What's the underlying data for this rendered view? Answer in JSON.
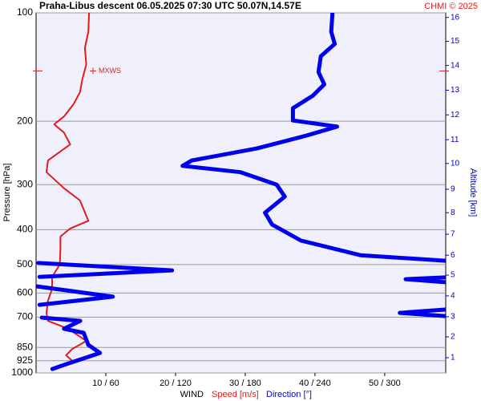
{
  "chart_data": {
    "type": "profile",
    "title": "Praha-Libus   descent   06.05.2025 07:30 UTC   50.07N,14.57E",
    "credit": "CHMI © 2025",
    "ylabel": "Pressure [hPa]",
    "y2label": "Altitude [km]",
    "xlabel": "WIND",
    "log_y": true,
    "ylim": [
      1000,
      100
    ],
    "yticks": [
      100,
      200,
      300,
      400,
      500,
      600,
      700,
      850,
      925,
      1000
    ],
    "grid": true,
    "xlim": [
      0,
      58.75
    ],
    "x2lim": [
      0,
      352.5
    ],
    "xticks": [
      {
        "value": 10,
        "label": "10 / 60"
      },
      {
        "value": 20,
        "label": "20 / 120"
      },
      {
        "value": 30,
        "label": "30 / 180"
      },
      {
        "value": 40,
        "label": "40 / 240"
      },
      {
        "value": 50,
        "label": "50 / 300"
      }
    ],
    "y2ticks": [
      1,
      2,
      3,
      4,
      5,
      6,
      7,
      8,
      9,
      10,
      11,
      12,
      13,
      14,
      15,
      16
    ],
    "y2tick_pressures": [
      907,
      794,
      698,
      611,
      535,
      471,
      412,
      359,
      309,
      262,
      225,
      192,
      164,
      140,
      120,
      103
    ],
    "annotation": {
      "text": "MXWS",
      "pressure": 145,
      "color": "#e02020"
    },
    "series": [
      {
        "name": "Speed [m/s]",
        "color": "#e41a1c",
        "axis": "x",
        "pressure": [
          100,
          113,
          125,
          139,
          154,
          166,
          179,
          194,
          204,
          215,
          232,
          257,
          277,
          307,
          332,
          378,
          397,
          418,
          452,
          500,
          541,
          584,
          630,
          681,
          717,
          754,
          815,
          858,
          893,
          926,
          975
        ],
        "values": [
          7.6,
          7.5,
          7.0,
          7.2,
          6.6,
          6.3,
          5.4,
          4.0,
          2.6,
          4.0,
          4.9,
          1.7,
          1.5,
          4.0,
          6.3,
          7.5,
          4.9,
          3.5,
          3.5,
          3.4,
          2.3,
          2.3,
          1.7,
          1.5,
          1.7,
          4.6,
          7.2,
          5.2,
          4.3,
          5.2,
          2.9
        ]
      },
      {
        "name": "Direction [°]",
        "color": "#0000ee",
        "axis": "x2",
        "pressure": [
          100,
          113,
          122,
          132,
          146,
          158,
          170,
          184,
          199,
          207,
          220,
          238,
          257,
          266,
          277,
          300,
          324,
          359,
          387,
          429,
          471,
          488,
          null,
          495,
          519,
          541,
          null,
          543,
          549,
          560,
          null,
          575,
          614,
          647,
          null,
          667,
          681,
          695,
          null,
          702,
          717,
          754,
          774,
          836,
          880,
          950,
          975
        ],
        "values": [
          255,
          254,
          257,
          245,
          243,
          248,
          238,
          221,
          221,
          259,
          231,
          190,
          134,
          126,
          176,
          207,
          214,
          197,
          203,
          228,
          279,
          352,
          null,
          2,
          117,
          3,
          null,
          352,
          318,
          352,
          null,
          1,
          66,
          3,
          null,
          352,
          313,
          352,
          null,
          5,
          38,
          24,
          41,
          45,
          55,
          24,
          14
        ]
      }
    ]
  }
}
